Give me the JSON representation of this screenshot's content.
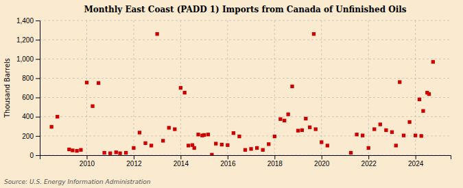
{
  "chart_data": {
    "type": "scatter",
    "title": "Monthly East Coast (PADD 1) Imports from Canada of Unfinished Oils",
    "ylabel": "Thousand Barrels",
    "annotations": [
      "Source: U.S. Energy Information Administration"
    ],
    "color": "#cc0000",
    "marker": "square",
    "grid": true,
    "xlim": [
      2008.0,
      2025.5
    ],
    "xticks": [
      2010,
      2012,
      2014,
      2016,
      2018,
      2020,
      2022,
      2024
    ],
    "ylim": [
      0,
      1400
    ],
    "yticks": [
      0,
      200,
      400,
      600,
      800,
      {
        "value": 1000,
        "label": "1,000"
      },
      {
        "value": 1200,
        "label": "1,200"
      },
      {
        "value": 1400,
        "label": "1,400"
      }
    ],
    "x": [
      2008.5,
      2008.75,
      2009.25,
      2009.4,
      2009.58,
      2009.75,
      2010.0,
      2010.25,
      2010.5,
      2010.75,
      2011.0,
      2011.25,
      2011.42,
      2011.67,
      2012.0,
      2012.25,
      2012.5,
      2012.75,
      2013.0,
      2013.25,
      2013.5,
      2013.75,
      2014.0,
      2014.17,
      2014.33,
      2014.5,
      2014.58,
      2014.75,
      2014.92,
      2015.0,
      2015.17,
      2015.33,
      2015.5,
      2015.75,
      2016.0,
      2016.25,
      2016.5,
      2016.75,
      2017.0,
      2017.25,
      2017.5,
      2017.75,
      2018.0,
      2018.25,
      2018.42,
      2018.58,
      2018.75,
      2019.0,
      2019.17,
      2019.33,
      2019.5,
      2019.67,
      2019.75,
      2020.0,
      2020.25,
      2021.25,
      2021.5,
      2021.75,
      2022.0,
      2022.25,
      2022.5,
      2022.75,
      2023.0,
      2023.17,
      2023.33,
      2023.5,
      2023.75,
      2024.0,
      2024.17,
      2024.25,
      2024.33,
      2024.5,
      2024.58,
      2024.75
    ],
    "values": [
      295,
      400,
      60,
      50,
      45,
      55,
      755,
      510,
      750,
      25,
      20,
      30,
      20,
      25,
      75,
      235,
      125,
      100,
      1260,
      150,
      285,
      270,
      700,
      650,
      100,
      105,
      75,
      215,
      205,
      210,
      215,
      5,
      120,
      110,
      105,
      230,
      195,
      55,
      65,
      75,
      55,
      115,
      195,
      375,
      360,
      425,
      715,
      255,
      260,
      380,
      290,
      1260,
      270,
      135,
      100,
      25,
      215,
      205,
      75,
      270,
      320,
      260,
      240,
      100,
      760,
      205,
      345,
      205,
      580,
      200,
      460,
      650,
      635,
      970
    ]
  }
}
